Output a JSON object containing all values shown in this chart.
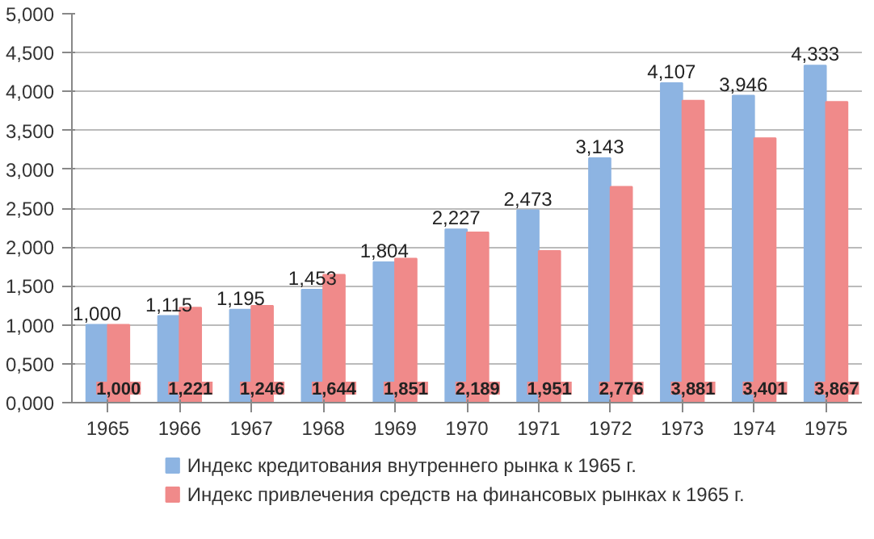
{
  "chart_data": {
    "type": "bar",
    "categories": [
      "1965",
      "1966",
      "1967",
      "1968",
      "1969",
      "1970",
      "1971",
      "1972",
      "1973",
      "1974",
      "1975"
    ],
    "series": [
      {
        "name": "Индекс кредитования внутреннего рынка к 1965 г.",
        "color": "#8db4e2",
        "values": [
          1.0,
          1.115,
          1.195,
          1.453,
          1.804,
          2.227,
          2.473,
          3.143,
          4.107,
          3.946,
          4.333
        ],
        "value_labels": [
          "1,000",
          "1,115",
          "1,195",
          "1,453",
          "1,804",
          "2,227",
          "2,473",
          "3,143",
          "4,107",
          "3,946",
          "4,333"
        ]
      },
      {
        "name": "Индекс привлечения средств на финансовых рынках к 1965 г.",
        "color": "#f08a8a",
        "values": [
          1.0,
          1.221,
          1.246,
          1.644,
          1.851,
          2.189,
          1.951,
          2.776,
          3.881,
          3.401,
          3.867
        ],
        "value_labels": [
          "1,000",
          "1,221",
          "1,246",
          "1,644",
          "1,851",
          "2,189",
          "1,951",
          "2,776",
          "3,881",
          "3,401",
          "3,867"
        ]
      }
    ],
    "ylim": [
      0,
      5
    ],
    "yticks": [
      {
        "value": 0,
        "label": "0,000"
      },
      {
        "value": 0.5,
        "label": "0,500"
      },
      {
        "value": 1,
        "label": "1,000"
      },
      {
        "value": 1.5,
        "label": "1,500"
      },
      {
        "value": 2,
        "label": "2,000"
      },
      {
        "value": 2.5,
        "label": "2,500"
      },
      {
        "value": 3,
        "label": "3,000"
      },
      {
        "value": 3.5,
        "label": "3,500"
      },
      {
        "value": 4,
        "label": "4,000"
      },
      {
        "value": 4.5,
        "label": "4,500"
      },
      {
        "value": 5,
        "label": "5,000"
      }
    ],
    "grid": "y",
    "legend": "bottom"
  }
}
